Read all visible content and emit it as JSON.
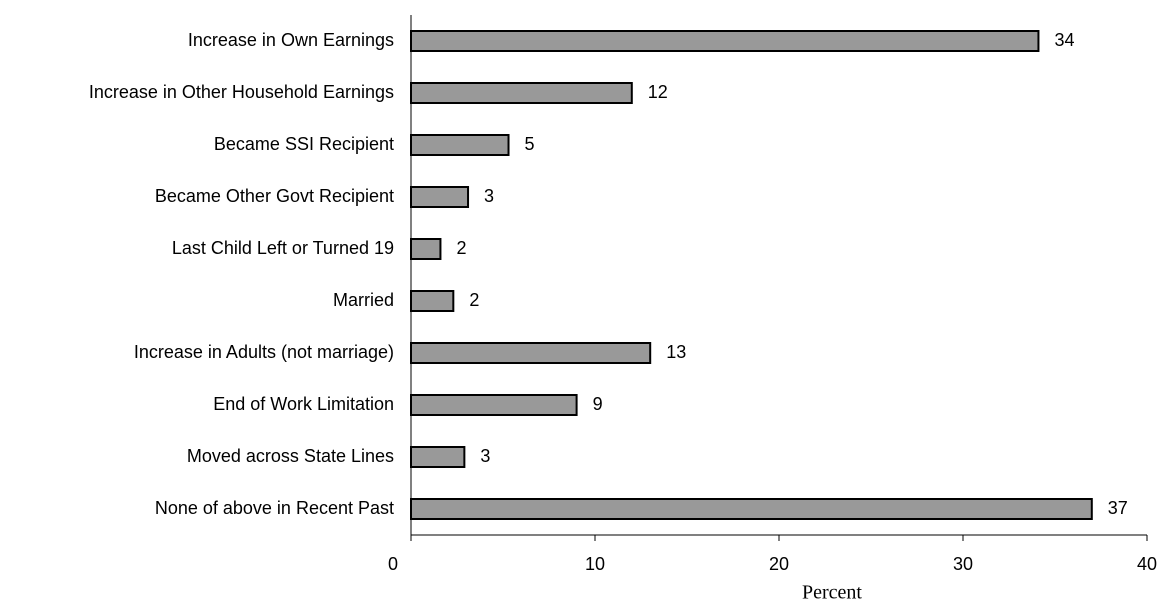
{
  "chart_data": {
    "type": "bar",
    "orientation": "horizontal",
    "categories": [
      "Increase in Own Earnings",
      "Increase in Other Household Earnings",
      "Became SSI Recipient",
      "Became Other Govt Recipient",
      "Last Child Left or Turned 19",
      "Married",
      "Increase in Adults (not marriage)",
      "End of Work Limitation",
      "Moved across State Lines",
      "None of above in Recent Past"
    ],
    "values": [
      34.1,
      12,
      5.3,
      3.1,
      1.6,
      2.3,
      13,
      9,
      2.9,
      37
    ],
    "value_labels": [
      "34",
      "12",
      "5",
      "3",
      "2",
      "2",
      "13",
      "9",
      "3",
      "37"
    ],
    "color": "#999999",
    "x_label": "Percent",
    "xlim": [
      0,
      40
    ],
    "xticks": [
      0,
      10,
      20,
      30,
      40
    ],
    "grid": false
  }
}
